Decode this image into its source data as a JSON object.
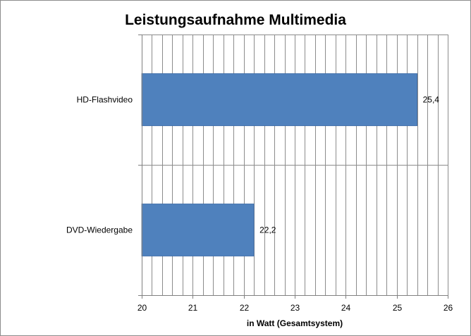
{
  "chart_data": {
    "type": "bar",
    "orientation": "horizontal",
    "title": "Leistungsaufnahme Multimedia",
    "xlabel": "in Watt (Gesamtsystem)",
    "ylabel": "",
    "categories": [
      "HD-Flashvideo",
      "DVD-Wiedergabe"
    ],
    "values": [
      25.4,
      22.2
    ],
    "value_labels": [
      "25,4",
      "22,2"
    ],
    "xlim": [
      20,
      26
    ],
    "x_ticks": [
      "20",
      "21",
      "22",
      "23",
      "24",
      "25",
      "26"
    ],
    "grid": true,
    "minor_gridlines_per_unit": 5,
    "legend": "none",
    "colors": {
      "bar": "#4f81bd",
      "bar_edge": "#3a6aa6",
      "grid": "#8c8c8c",
      "axis": "#808080",
      "frame": "#8c8c8c"
    }
  }
}
